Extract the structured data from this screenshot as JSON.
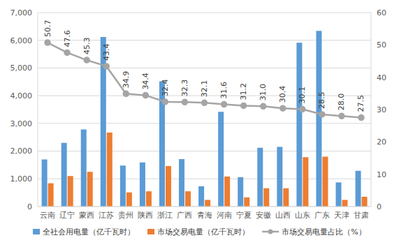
{
  "chart_data": {
    "type": "bar",
    "categories": [
      "云南",
      "辽宁",
      "蒙西",
      "江苏",
      "贵州",
      "陕西",
      "浙江",
      "广西",
      "青海",
      "河南",
      "宁夏",
      "安徽",
      "山西",
      "山东",
      "广东",
      "天津",
      "甘肃"
    ],
    "series": [
      {
        "name": "全社会用电量（亿千瓦时）",
        "type": "bar",
        "color": "#5b9bd5",
        "values": [
          1700,
          2300,
          2780,
          6120,
          1480,
          1590,
          4520,
          1710,
          730,
          3420,
          1060,
          2120,
          2150,
          5910,
          6340,
          870,
          1290
        ]
      },
      {
        "name": "市场交易电量（亿千瓦时）",
        "type": "bar",
        "color": "#ed7d31",
        "values": [
          840,
          1100,
          1250,
          2670,
          510,
          550,
          1460,
          550,
          240,
          1080,
          330,
          660,
          660,
          1780,
          1800,
          240,
          350
        ]
      },
      {
        "name": "市场交易电量占比（%）",
        "type": "line",
        "axis": "y2",
        "color": "#a5a5a5",
        "marker": "circle",
        "data_labels": true,
        "values": [
          50.7,
          47.6,
          45.3,
          43.4,
          34.9,
          34.4,
          32.4,
          32.3,
          32.1,
          31.6,
          31.2,
          31.0,
          30.4,
          30.1,
          28.5,
          28.0,
          27.5
        ],
        "value_labels": [
          "50.7",
          "47.6",
          "45.3",
          "43.4",
          "34.9",
          "34.4",
          "32.4",
          "32.3",
          "32.1",
          "31.6",
          "31.2",
          "31.0",
          "30.4",
          "30.1",
          "28.5",
          "28.0",
          "27.5"
        ]
      }
    ],
    "ylim": [
      0,
      7000
    ],
    "yticks": [
      0,
      {
        "value": 1000,
        "label": "1,000"
      },
      {
        "value": 2000,
        "label": "2,000"
      },
      {
        "value": 3000,
        "label": "3,000"
      },
      {
        "value": 4000,
        "label": "4,000"
      },
      {
        "value": 5000,
        "label": "5,000"
      },
      {
        "value": 6000,
        "label": "6,000"
      },
      {
        "value": 7000,
        "label": "7,000"
      }
    ],
    "y2lim": [
      0,
      60
    ],
    "y2ticks": [
      0,
      10,
      20,
      30,
      40,
      50,
      60
    ],
    "grid": true,
    "legend": "bottom"
  }
}
